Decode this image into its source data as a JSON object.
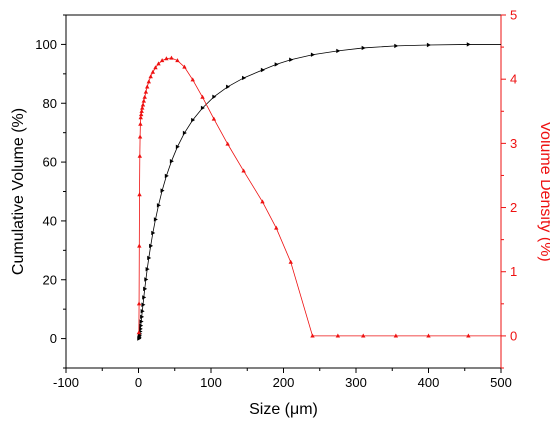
{
  "chart_data": {
    "type": "line",
    "title": "",
    "xlabel": "Size (μm)",
    "ylabel_left": "Cumulative Volume (%)",
    "ylabel_right": "Volume Density (%)",
    "xlim": [
      -100,
      500
    ],
    "ylim_left": [
      -10,
      110
    ],
    "ylim_right": [
      -0.5,
      5
    ],
    "x_ticks": [
      -100,
      0,
      100,
      200,
      300,
      400,
      500
    ],
    "y_left_ticks": [
      0,
      20,
      40,
      60,
      80,
      100
    ],
    "y_right_ticks": [
      0,
      1,
      2,
      3,
      4,
      5
    ],
    "colors": {
      "cumulative": "#000000",
      "density": "#ee1111",
      "axis": "#000000"
    },
    "series": [
      {
        "axis": "left",
        "marker": "triangle-right",
        "points": [
          [
            0.5,
            0
          ],
          [
            0.8,
            0.2
          ],
          [
            1.1,
            0.5
          ],
          [
            1.4,
            1
          ],
          [
            1.8,
            1.6
          ],
          [
            2.2,
            2.4
          ],
          [
            2.6,
            3.3
          ],
          [
            3.1,
            4.4
          ],
          [
            3.7,
            5.8
          ],
          [
            4.4,
            7.4
          ],
          [
            5.2,
            9.3
          ],
          [
            6.2,
            11.5
          ],
          [
            7.3,
            14
          ],
          [
            8.6,
            16.9
          ],
          [
            10.2,
            20.1
          ],
          [
            12,
            23.6
          ],
          [
            14.2,
            27.4
          ],
          [
            16.8,
            31.5
          ],
          [
            19.8,
            35.9
          ],
          [
            23.4,
            40.5
          ],
          [
            27.6,
            45.3
          ],
          [
            32.6,
            50.3
          ],
          [
            38.5,
            55.3
          ],
          [
            45.5,
            60.3
          ],
          [
            53.7,
            65.2
          ],
          [
            63.4,
            69.9
          ],
          [
            74.8,
            74.3
          ],
          [
            88.3,
            78.4
          ],
          [
            104,
            82.2
          ],
          [
            123,
            85.6
          ],
          [
            145,
            88.6
          ],
          [
            171,
            91.3
          ],
          [
            190,
            93.2
          ],
          [
            210,
            94.8
          ],
          [
            240,
            96.5
          ],
          [
            275,
            97.8
          ],
          [
            310,
            98.8
          ],
          [
            355,
            99.5
          ],
          [
            400,
            99.8
          ],
          [
            455,
            100
          ]
        ]
      },
      {
        "axis": "right",
        "marker": "triangle-up",
        "points": [
          [
            0.5,
            0.05
          ],
          [
            0.8,
            0.5
          ],
          [
            1.1,
            1.4
          ],
          [
            1.4,
            2.2
          ],
          [
            1.8,
            2.8
          ],
          [
            2.2,
            3.1
          ],
          [
            2.6,
            3.3
          ],
          [
            3.1,
            3.4
          ],
          [
            3.7,
            3.45
          ],
          [
            4.4,
            3.5
          ],
          [
            5.2,
            3.55
          ],
          [
            6.2,
            3.6
          ],
          [
            7.3,
            3.66
          ],
          [
            8.6,
            3.72
          ],
          [
            10.2,
            3.8
          ],
          [
            12,
            3.88
          ],
          [
            14.2,
            3.96
          ],
          [
            16.8,
            4.04
          ],
          [
            19.8,
            4.11
          ],
          [
            23.4,
            4.18
          ],
          [
            27.6,
            4.24
          ],
          [
            32.6,
            4.29
          ],
          [
            38.5,
            4.32
          ],
          [
            45.5,
            4.33
          ],
          [
            53.7,
            4.29
          ],
          [
            63.4,
            4.19
          ],
          [
            74.8,
            3.99
          ],
          [
            88.3,
            3.72
          ],
          [
            104,
            3.38
          ],
          [
            123,
            2.99
          ],
          [
            145,
            2.57
          ],
          [
            171,
            2.09
          ],
          [
            190,
            1.68
          ],
          [
            210,
            1.15
          ],
          [
            240,
            0
          ],
          [
            275,
            0
          ],
          [
            310,
            0
          ],
          [
            355,
            0
          ],
          [
            400,
            0
          ],
          [
            455,
            0
          ]
        ]
      }
    ]
  }
}
